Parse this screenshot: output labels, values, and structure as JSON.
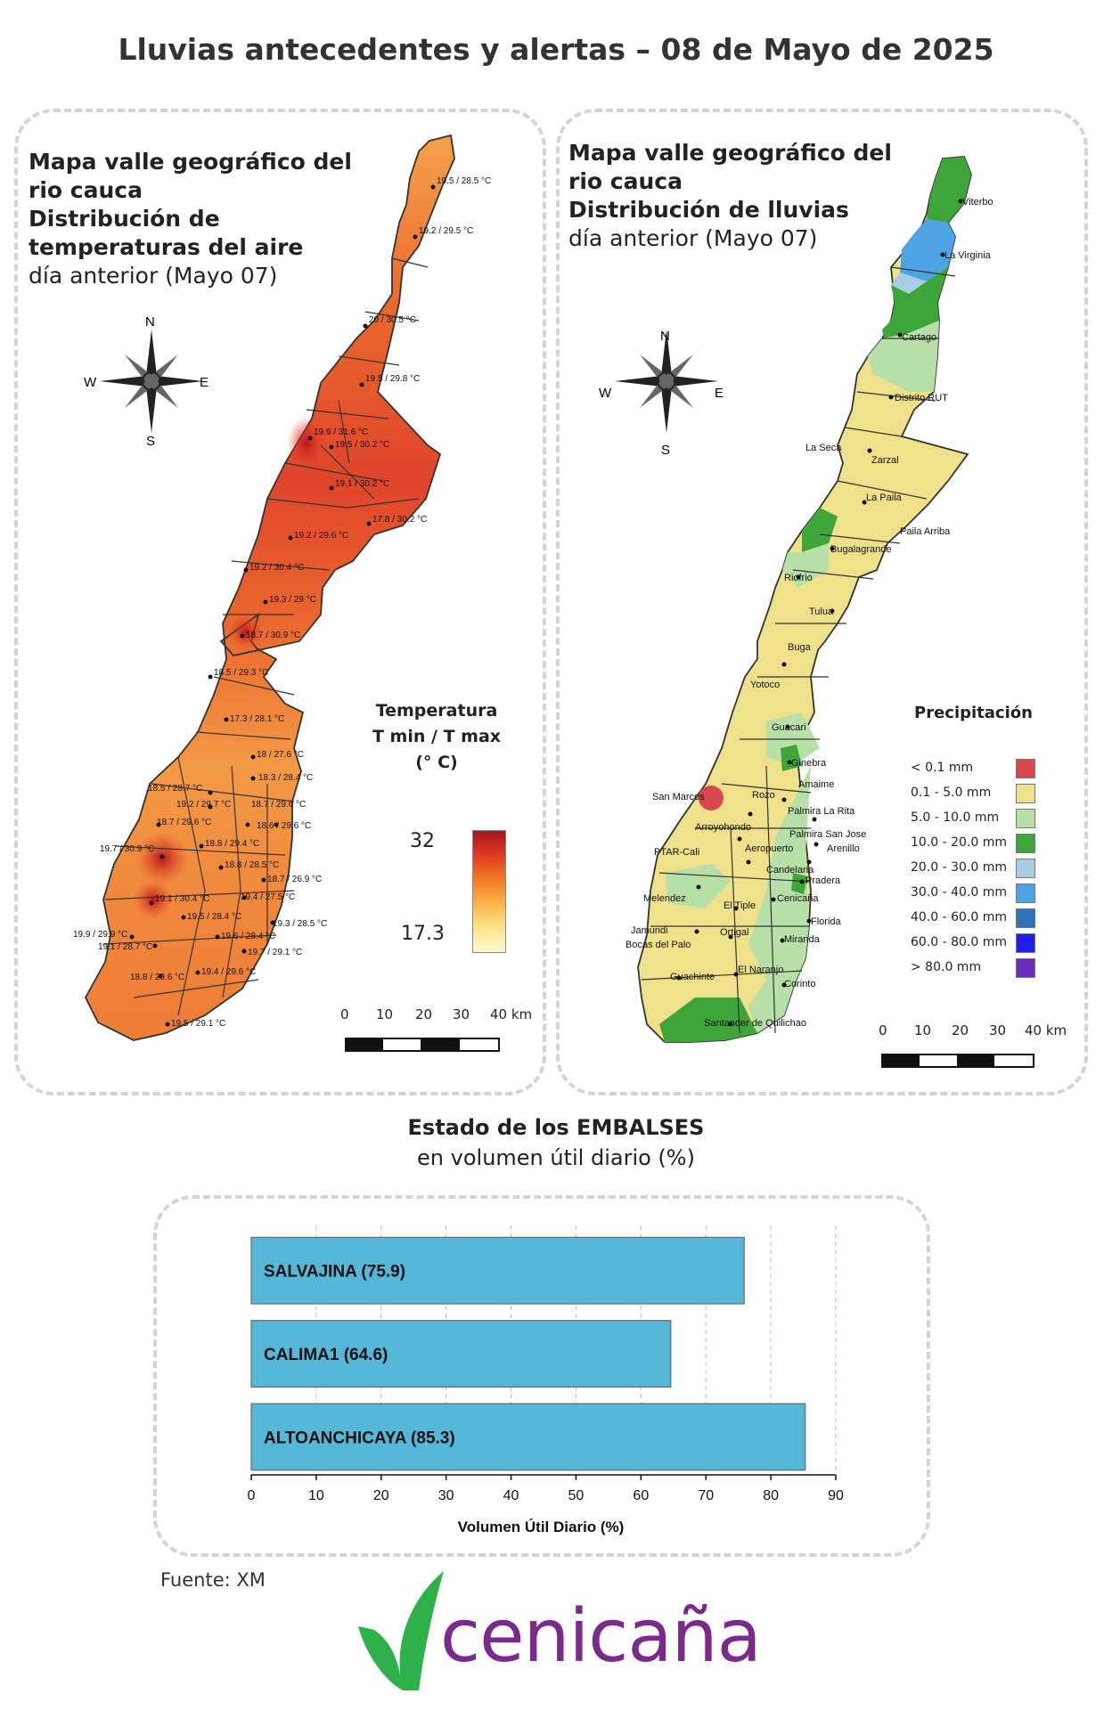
{
  "title": "Lluvias antecedentes y alertas – 08 de Mayo de 2025",
  "temperature_panel": {
    "title_bold": [
      "Mapa valle geográfico del",
      "rio cauca",
      "Distribución de",
      "temperaturas del aire"
    ],
    "subtitle": "día anterior (Mayo 07)",
    "legend_title": [
      "Temperatura",
      "T min / T max",
      "(° C)"
    ],
    "legend_max": "32",
    "legend_min": "17.3",
    "station_labels": [
      "19.5 / 28.5 °C",
      "19.2 / 29.5 °C",
      "20 / 30.5 °C",
      "19.5 / 29.8 °C",
      "19.9 / 31.6 °C",
      "19.5 / 30.2 °C",
      "19.1 / 30.2 °C",
      "17.8 / 30.2 °C",
      "19.2 / 29.6 °C",
      "19.2 / 30.4 °C",
      "19.3 / 29 °C",
      "18.7 / 30.9 °C",
      "18.5 / 29.3 °C",
      "17.3 / 28.1 °C",
      "18 / 27.6 °C",
      "18.3 / 28.4 °C",
      "18.5 / 28.7 °C",
      "19.2 / 29.7 °C",
      "18.7 / 29.6 °C",
      "18.7 / 29.6 °C",
      "18.6 / 29.6 °C",
      "19.7 / 30.9 °C",
      "18.8 / 29.4 °C",
      "18.8 / 28.5 °C",
      "18.7 / 26.9 °C",
      "19.1 / 30.4 °C",
      "19.4 / 27.5 °C",
      "19.5 / 28.4 °C",
      "19.3 / 28.5 °C",
      "19.9 / 29.9 °C",
      "19.1 / 28.7 °C",
      "19.6 / 28.4 °C",
      "19.7 / 29.1 °C",
      "18.8 / 29.6 °C",
      "19.4 / 29.6 °C",
      "19.5 / 29.1 °C"
    ]
  },
  "rain_panel": {
    "title_bold": [
      "Mapa valle geográfico del",
      "rio cauca",
      "Distribución de lluvias"
    ],
    "subtitle": "día anterior (Mayo 07)",
    "legend_title": "Precipitación",
    "legend": [
      {
        "label": "< 0.1 mm",
        "color": "#d9474f"
      },
      {
        "label": "0.1 - 5.0 mm",
        "color": "#efe08a"
      },
      {
        "label": "5.0 - 10.0 mm",
        "color": "#b6e0a8"
      },
      {
        "label": "10.0 - 20.0 mm",
        "color": "#3da53a"
      },
      {
        "label": "20.0 - 30.0 mm",
        "color": "#a8cde6"
      },
      {
        "label": "30.0 - 40.0 mm",
        "color": "#4ea3e4"
      },
      {
        "label": "40.0 - 60.0 mm",
        "color": "#2b73b8"
      },
      {
        "label": "60.0 - 80.0 mm",
        "color": "#1f1fe8"
      },
      {
        "label": "> 80.0 mm",
        "color": "#6b2bbf"
      }
    ],
    "place_labels": [
      "Viterbo",
      "La Virginia",
      "Cartago",
      "Distrito RUT",
      "La Seca",
      "Zarzal",
      "La Paila",
      "Paila Arriba",
      "Bugalagrande",
      "Riofrio",
      "Tulua",
      "Buga",
      "Yotoco",
      "Guacari",
      "Ginebra",
      "Amaime",
      "San Marcos",
      "Rozo",
      "Palmira La Rita",
      "Arroyohondo",
      "Palmira San Jose",
      "Aeropuerto",
      "Arenillo",
      "PTAR-Cali",
      "Candelaria",
      "Pradera",
      "Melendez",
      "El Tiple",
      "Cenicaña",
      "Florida",
      "Jamundi",
      "Bocas del Palo",
      "Ortigal",
      "Miranda",
      "Guachinte",
      "El Naranjo",
      "Corinto",
      "Santander de Quilichao"
    ]
  },
  "compass": {
    "n": "N",
    "s": "S",
    "e": "E",
    "w": "W"
  },
  "scale_bar": {
    "ticks": [
      "0",
      "10",
      "20",
      "30",
      "40 km"
    ]
  },
  "reservoirs": {
    "heading": "Estado de los EMBALSES",
    "subheading": "en volumen útil diario (%)",
    "chart_data": {
      "type": "bar",
      "orientation": "horizontal",
      "categories": [
        "SALVAJINA (75.9)",
        "CALIMA1 (64.6)",
        "ALTOANCHICAYA (85.3)"
      ],
      "values": [
        75.9,
        64.6,
        85.3
      ],
      "xlabel": "Volumen Útil Diario (%)",
      "xlim": [
        0,
        90
      ],
      "xticks": [
        "0",
        "10",
        "20",
        "30",
        "40",
        "50",
        "60",
        "70",
        "80",
        "90"
      ],
      "bar_color": "#55b8d9",
      "grid": "vertical-dashed"
    }
  },
  "source": "Fuente: XM",
  "logo": {
    "text": "cenicaña",
    "color": "#7a2a8a",
    "accent": "#2fb14a"
  }
}
